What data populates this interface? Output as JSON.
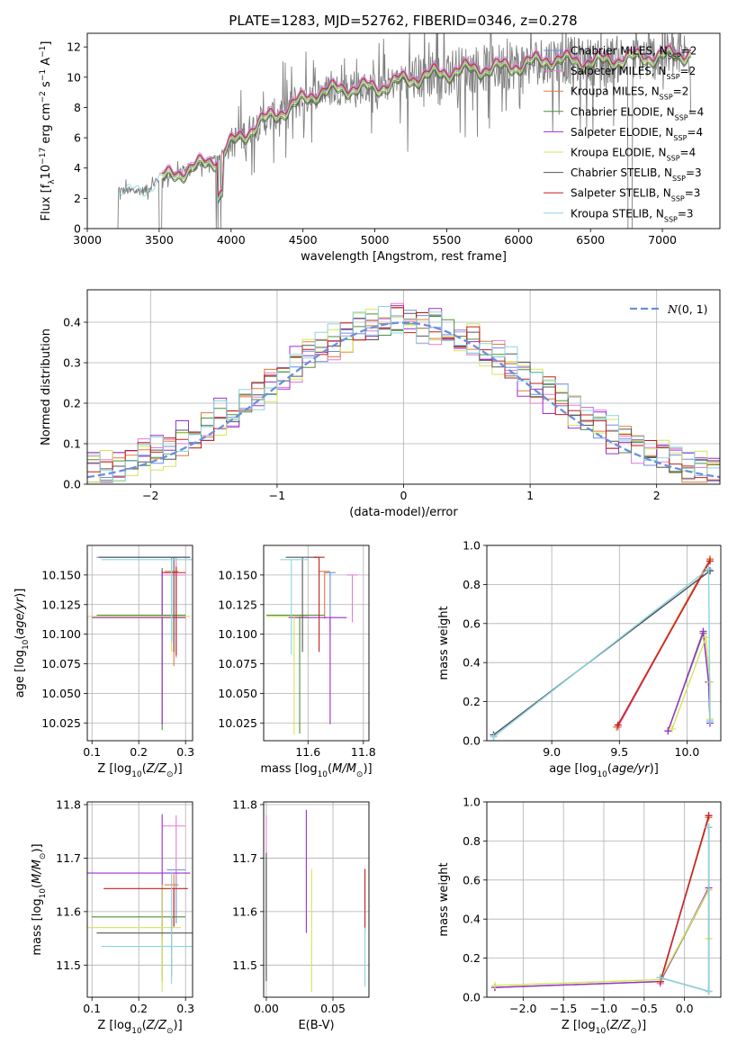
{
  "figure": {
    "title": "PLATE=1283, MJD=52762, FIBERID=0346, z=0.278"
  },
  "models": [
    {
      "name": "Chabrier MILES",
      "nssp": "2",
      "color": "#6a8fe0"
    },
    {
      "name": "Salpeter MILES",
      "nssp": "2",
      "color": "#e77bd4"
    },
    {
      "name": "Kroupa MILES",
      "nssp": "2",
      "color": "#e07b39"
    },
    {
      "name": "Chabrier ELODIE",
      "nssp": "4",
      "color": "#4f8f3a"
    },
    {
      "name": "Salpeter ELODIE",
      "nssp": "4",
      "color": "#9b2fd1"
    },
    {
      "name": "Kroupa ELODIE",
      "nssp": "4",
      "color": "#d6e35a"
    },
    {
      "name": "Chabrier STELIB",
      "nssp": "3",
      "color": "#555555"
    },
    {
      "name": "Salpeter STELIB",
      "nssp": "3",
      "color": "#c41f1f"
    },
    {
      "name": "Kroupa STELIB",
      "nssp": "3",
      "color": "#8ad5e0"
    }
  ],
  "chart_data": [
    {
      "id": "spectrum",
      "type": "line",
      "xlabel": "wavelength [Angstrom, rest frame]",
      "ylabel_text": "Flux [f",
      "xlim": [
        3000,
        7400
      ],
      "ylim": [
        0,
        12.9
      ],
      "xticks": [
        3000,
        3500,
        4000,
        4500,
        5000,
        5500,
        6000,
        6500,
        7000
      ],
      "yticks": [
        0,
        2,
        4,
        6,
        8,
        10,
        12
      ],
      "data_color": "#808080",
      "continuum": [
        [
          3215,
          2.5
        ],
        [
          3400,
          2.5
        ],
        [
          3510,
          3.3
        ],
        [
          3700,
          3.9
        ],
        [
          3900,
          4.6
        ],
        [
          4000,
          5.6
        ],
        [
          4200,
          7.0
        ],
        [
          4400,
          8.0
        ],
        [
          4600,
          9.0
        ],
        [
          4800,
          9.3
        ],
        [
          5000,
          9.3
        ],
        [
          5200,
          9.8
        ],
        [
          5400,
          10.2
        ],
        [
          5600,
          10.5
        ],
        [
          5800,
          10.6
        ],
        [
          6000,
          10.8
        ],
        [
          6200,
          11.2
        ],
        [
          6500,
          11.0
        ],
        [
          6800,
          11.3
        ],
        [
          7000,
          11.4
        ],
        [
          7200,
          11.6
        ]
      ],
      "series": [
        {
          "model": 0,
          "offset": 0.2
        },
        {
          "model": 1,
          "offset": 0.3
        },
        {
          "model": 2,
          "offset": 0.1
        },
        {
          "model": 3,
          "offset": -0.2
        },
        {
          "model": 4,
          "offset": 0.0
        },
        {
          "model": 5,
          "offset": -0.1
        },
        {
          "model": 6,
          "offset": -0.3
        },
        {
          "model": 7,
          "offset": 0.15
        },
        {
          "model": 8,
          "offset": 0.0
        }
      ]
    },
    {
      "id": "residuals",
      "type": "line",
      "xlabel": "(data-model)/error",
      "ylabel": "Normed distribution",
      "xlim": [
        -2.5,
        2.5
      ],
      "ylim": [
        0,
        0.48
      ],
      "xticks": [
        -2,
        -1,
        0,
        1,
        2
      ],
      "yticks": [
        0.0,
        0.1,
        0.2,
        0.3,
        0.4
      ],
      "normal_label": "N(0,1)",
      "normal_color": "#6a8fe0",
      "bin_width": 0.1,
      "series": [
        {
          "model": 0,
          "jitter": 0.02
        },
        {
          "model": 1,
          "jitter": 0.03
        },
        {
          "model": 2,
          "jitter": 0.025
        },
        {
          "model": 3,
          "jitter": 0.02
        },
        {
          "model": 4,
          "jitter": 0.035
        },
        {
          "model": 5,
          "jitter": 0.03
        },
        {
          "model": 6,
          "jitter": 0.02
        },
        {
          "model": 7,
          "jitter": 0.025
        },
        {
          "model": 8,
          "jitter": 0.03
        }
      ]
    },
    {
      "id": "age_vs_Z",
      "type": "scatter",
      "xlabel": "Z [log",
      "ylabel": "age  [log",
      "xlim": [
        0.09,
        0.315
      ],
      "ylim": [
        10.01,
        10.175
      ],
      "xticks": [
        0.1,
        0.2,
        0.3
      ],
      "yticks": [
        10.025,
        10.05,
        10.075,
        10.1,
        10.125,
        10.15
      ],
      "points": [
        {
          "model": 0,
          "x": 0.27,
          "y": 10.165,
          "xerr": [
            0.16,
            0.04
          ],
          "yerr": [
            0.07,
            0.0
          ]
        },
        {
          "model": 1,
          "x": 0.28,
          "y": 10.15,
          "xerr": [
            0.03,
            0.02
          ],
          "yerr": [
            0.07,
            0.015
          ]
        },
        {
          "model": 2,
          "x": 0.275,
          "y": 10.153,
          "xerr": [
            0.02,
            0.01
          ],
          "yerr": [
            0.08,
            0.0
          ]
        },
        {
          "model": 3,
          "x": 0.25,
          "y": 10.116,
          "xerr": [
            0.14,
            0.05
          ],
          "yerr": [
            0.097,
            0.04
          ]
        },
        {
          "model": 4,
          "x": 0.25,
          "y": 10.114,
          "xerr": [
            0.15,
            0.05
          ],
          "yerr": [
            0.09,
            0.04
          ]
        },
        {
          "model": 5,
          "x": 0.27,
          "y": 10.115,
          "xerr": [
            0.18,
            0.04
          ],
          "yerr": [
            0.03,
            0.0
          ]
        },
        {
          "model": 6,
          "x": 0.275,
          "y": 10.165,
          "xerr": [
            0.16,
            0.035
          ],
          "yerr": [
            0.08,
            0.0
          ]
        },
        {
          "model": 7,
          "x": 0.28,
          "y": 10.152,
          "xerr": [
            0.03,
            0.02
          ],
          "yerr": [
            0.07,
            0.005
          ]
        },
        {
          "model": 8,
          "x": 0.27,
          "y": 10.163,
          "xerr": [
            0.15,
            0.045
          ],
          "yerr": [
            0.07,
            0.0
          ]
        }
      ]
    },
    {
      "id": "age_vs_mass",
      "type": "scatter",
      "xlabel": "mass [log",
      "xlim": [
        11.44,
        11.82
      ],
      "ylim": [
        10.01,
        10.175
      ],
      "xticks": [
        11.6,
        11.8
      ],
      "yticks": [
        10.025,
        10.05,
        10.075,
        10.1,
        10.125,
        10.15
      ],
      "points": [
        {
          "model": 0,
          "x": 11.68,
          "y": 10.152,
          "xerr": [
            0.02,
            0.02
          ],
          "yerr": [
            0.05,
            0.0
          ]
        },
        {
          "model": 1,
          "x": 11.76,
          "y": 10.15,
          "xerr": [
            0.02,
            0.02
          ],
          "yerr": [
            0.04,
            0.0
          ]
        },
        {
          "model": 2,
          "x": 11.66,
          "y": 10.153,
          "xerr": [
            0.02,
            0.02
          ],
          "yerr": [
            0.04,
            0.0
          ]
        },
        {
          "model": 3,
          "x": 11.57,
          "y": 10.116,
          "xerr": [
            0.12,
            0.09
          ],
          "yerr": [
            0.1,
            0.0
          ]
        },
        {
          "model": 4,
          "x": 11.68,
          "y": 10.114,
          "xerr": [
            0.15,
            0.06
          ],
          "yerr": [
            0.09,
            0.0
          ]
        },
        {
          "model": 5,
          "x": 11.55,
          "y": 10.115,
          "xerr": [
            0.1,
            0.05
          ],
          "yerr": [
            0.1,
            0.0
          ]
        },
        {
          "model": 6,
          "x": 11.58,
          "y": 10.165,
          "xerr": [
            0.06,
            0.06
          ],
          "yerr": [
            0.08,
            0.0
          ]
        },
        {
          "model": 7,
          "x": 11.64,
          "y": 10.165,
          "xerr": [
            0.02,
            0.02
          ],
          "yerr": [
            0.08,
            0.0
          ]
        },
        {
          "model": 8,
          "x": 11.54,
          "y": 10.163,
          "xerr": [
            0.04,
            0.06
          ],
          "yerr": [
            0.08,
            0.0
          ]
        }
      ]
    },
    {
      "id": "mw_vs_age",
      "type": "line",
      "xlabel": "age  [log",
      "ylabel": "mass weight",
      "xlim": [
        8.52,
        10.25
      ],
      "ylim": [
        0.0,
        1.0
      ],
      "xticks": [
        9.0,
        9.5,
        10.0
      ],
      "yticks": [
        0.0,
        0.2,
        0.4,
        0.6,
        0.8,
        1.0
      ],
      "series": [
        {
          "model": 0,
          "x": [
            8.57,
            10.17
          ],
          "y": [
            0.03,
            0.87
          ]
        },
        {
          "model": 1,
          "x": [
            9.49,
            10.17
          ],
          "y": [
            0.07,
            0.93
          ]
        },
        {
          "model": 2,
          "x": [
            9.48,
            10.17
          ],
          "y": [
            0.07,
            0.93
          ]
        },
        {
          "model": 3,
          "x": [
            9.86,
            10.12,
            10.16,
            10.17
          ],
          "y": [
            0.05,
            0.55,
            0.3,
            0.1
          ]
        },
        {
          "model": 4,
          "x": [
            9.86,
            10.12,
            10.16,
            10.17
          ],
          "y": [
            0.05,
            0.56,
            0.3,
            0.09
          ]
        },
        {
          "model": 5,
          "x": [
            9.89,
            10.14,
            10.17,
            10.17
          ],
          "y": [
            0.06,
            0.53,
            0.3,
            0.11
          ]
        },
        {
          "model": 6,
          "x": [
            8.57,
            10.17
          ],
          "y": [
            0.03,
            0.87
          ]
        },
        {
          "model": 7,
          "x": [
            9.49,
            10.17
          ],
          "y": [
            0.08,
            0.92
          ]
        },
        {
          "model": 8,
          "x": [
            8.57,
            10.16,
            10.17
          ],
          "y": [
            0.02,
            0.88,
            0.1
          ]
        }
      ]
    },
    {
      "id": "mass_vs_Z",
      "type": "scatter",
      "xlabel": "Z [log",
      "ylabel": "mass [log",
      "xlim": [
        0.09,
        0.315
      ],
      "ylim": [
        11.44,
        11.805
      ],
      "xticks": [
        0.1,
        0.2,
        0.3
      ],
      "yticks": [
        11.5,
        11.6,
        11.7,
        11.8
      ],
      "points": [
        {
          "model": 0,
          "x": 0.28,
          "y": 11.678,
          "xerr": [
            0.02,
            0.02
          ],
          "yerr": [
            0.1,
            0.0
          ]
        },
        {
          "model": 1,
          "x": 0.28,
          "y": 11.76,
          "xerr": [
            0.03,
            0.02
          ],
          "yerr": [
            0.1,
            0.02
          ]
        },
        {
          "model": 2,
          "x": 0.275,
          "y": 11.65,
          "xerr": [
            0.02,
            0.01
          ],
          "yerr": [
            0.08,
            0.02
          ]
        },
        {
          "model": 3,
          "x": 0.25,
          "y": 11.59,
          "xerr": [
            0.15,
            0.05
          ],
          "yerr": [
            0.12,
            0.06
          ]
        },
        {
          "model": 4,
          "x": 0.25,
          "y": 11.672,
          "xerr": [
            0.16,
            0.06
          ],
          "yerr": [
            0.12,
            0.11
          ]
        },
        {
          "model": 5,
          "x": 0.25,
          "y": 11.57,
          "xerr": [
            0.19,
            0.04
          ],
          "yerr": [
            0.12,
            0.08
          ]
        },
        {
          "model": 6,
          "x": 0.27,
          "y": 11.56,
          "xerr": [
            0.16,
            0.045
          ],
          "yerr": [
            0.08,
            0.03
          ]
        },
        {
          "model": 7,
          "x": 0.275,
          "y": 11.643,
          "xerr": [
            0.15,
            0.03
          ],
          "yerr": [
            0.07,
            0.0
          ]
        },
        {
          "model": 8,
          "x": 0.27,
          "y": 11.535,
          "xerr": [
            0.15,
            0.045
          ],
          "yerr": [
            0.07,
            0.14
          ]
        }
      ]
    },
    {
      "id": "mass_vs_ebv",
      "type": "scatter",
      "xlabel": "E(B-V)",
      "xlim": [
        -0.002,
        0.077
      ],
      "ylim": [
        11.44,
        11.805
      ],
      "xticks": [
        0.0,
        0.05
      ],
      "yticks": [
        11.5,
        11.6,
        11.7,
        11.8
      ],
      "points": [
        {
          "model": 0,
          "x": 0.0,
          "y": 11.6,
          "xerr": [
            0,
            0
          ],
          "yerr": [
            0.12,
            0.11
          ]
        },
        {
          "model": 1,
          "x": 0.0,
          "y": 11.7,
          "xerr": [
            0,
            0
          ],
          "yerr": [
            0.12,
            0.08
          ]
        },
        {
          "model": 2,
          "x": 0.0,
          "y": 11.6,
          "xerr": [
            0,
            0
          ],
          "yerr": [
            0.08,
            0.08
          ]
        },
        {
          "model": 3,
          "x": 0.0,
          "y": 11.59,
          "xerr": [
            0,
            0
          ],
          "yerr": [
            0.12,
            0.11
          ]
        },
        {
          "model": 4,
          "x": 0.03,
          "y": 11.67,
          "xerr": [
            0,
            0
          ],
          "yerr": [
            0.11,
            0.12
          ]
        },
        {
          "model": 5,
          "x": 0.034,
          "y": 11.57,
          "xerr": [
            0,
            0
          ],
          "yerr": [
            0.12,
            0.11
          ]
        },
        {
          "model": 6,
          "x": 0.0,
          "y": 11.59,
          "xerr": [
            0,
            0
          ],
          "yerr": [
            0.12,
            0.12
          ]
        },
        {
          "model": 7,
          "x": 0.074,
          "y": 11.6,
          "xerr": [
            0,
            0
          ],
          "yerr": [
            0.04,
            0.08
          ]
        },
        {
          "model": 8,
          "x": 0.074,
          "y": 11.5,
          "xerr": [
            0,
            0
          ],
          "yerr": [
            0.04,
            0.07
          ]
        }
      ]
    },
    {
      "id": "mw_vs_Z",
      "type": "line",
      "xlabel": "Z [log",
      "ylabel": "mass weight",
      "xlim": [
        -2.45,
        0.45
      ],
      "ylim": [
        0.0,
        1.0
      ],
      "xticks": [
        -2.0,
        -1.5,
        -1.0,
        -0.5,
        0.0
      ],
      "yticks": [
        0.0,
        0.2,
        0.4,
        0.6,
        0.8,
        1.0
      ],
      "series": [
        {
          "model": 0,
          "x": [
            -0.3,
            0.3
          ],
          "y": [
            0.08,
            0.92
          ]
        },
        {
          "model": 1,
          "x": [
            -0.3,
            0.3
          ],
          "y": [
            0.07,
            0.93
          ]
        },
        {
          "model": 2,
          "x": [
            -0.3,
            0.3
          ],
          "y": [
            0.08,
            0.92
          ]
        },
        {
          "model": 3,
          "x": [
            -2.35,
            -0.3,
            0.3
          ],
          "y": [
            0.05,
            0.08,
            0.55
          ]
        },
        {
          "model": 4,
          "x": [
            -2.35,
            -0.3,
            0.3
          ],
          "y": [
            0.05,
            0.08,
            0.56
          ]
        },
        {
          "model": 5,
          "x": [
            -2.35,
            -0.3,
            0.3,
            0.3
          ],
          "y": [
            0.06,
            0.09,
            0.55,
            0.3
          ]
        },
        {
          "model": 6,
          "x": [
            -0.3,
            0.3,
            0.3
          ],
          "y": [
            0.1,
            0.03,
            0.87
          ]
        },
        {
          "model": 7,
          "x": [
            -0.3,
            0.3
          ],
          "y": [
            0.08,
            0.93
          ]
        },
        {
          "model": 8,
          "x": [
            -0.3,
            0.3,
            0.3
          ],
          "y": [
            0.1,
            0.03,
            0.87
          ]
        }
      ]
    }
  ]
}
